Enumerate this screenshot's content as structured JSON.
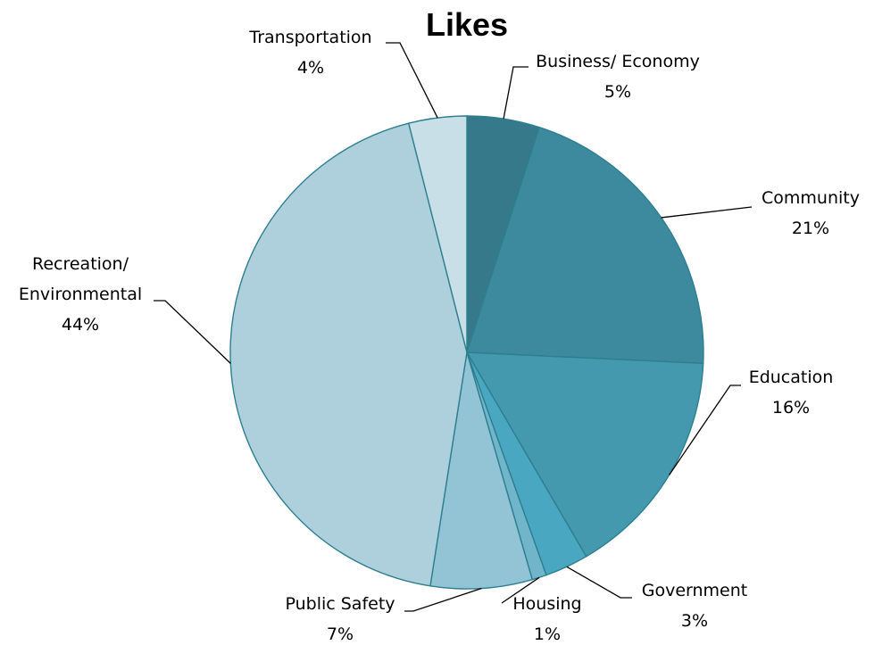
{
  "chart_data": {
    "type": "pie",
    "title": "Likes",
    "slices": [
      {
        "name": "Business/ Economy",
        "value": 5,
        "label": "5%",
        "color": "#35798b"
      },
      {
        "name": "Community",
        "value": 21,
        "label": "21%",
        "color": "#3d8a9f"
      },
      {
        "name": "Education",
        "value": 16,
        "label": "16%",
        "color": "#4499ae"
      },
      {
        "name": "Government",
        "value": 3,
        "label": "3%",
        "color": "#4aa7c1"
      },
      {
        "name": "Housing",
        "value": 1,
        "label": "1%",
        "color": "#70b5ca"
      },
      {
        "name": "Public Safety",
        "value": 7,
        "label": "7%",
        "color": "#93c4d5"
      },
      {
        "name": "Recreation/ Environmental",
        "value": 44,
        "label": "44%",
        "color": "#aed0dc"
      },
      {
        "name": "Transportation",
        "value": 4,
        "label": "4%",
        "color": "#c8dfe7"
      }
    ],
    "legend": "none",
    "data_labels": "outside-with-leader-lines"
  }
}
